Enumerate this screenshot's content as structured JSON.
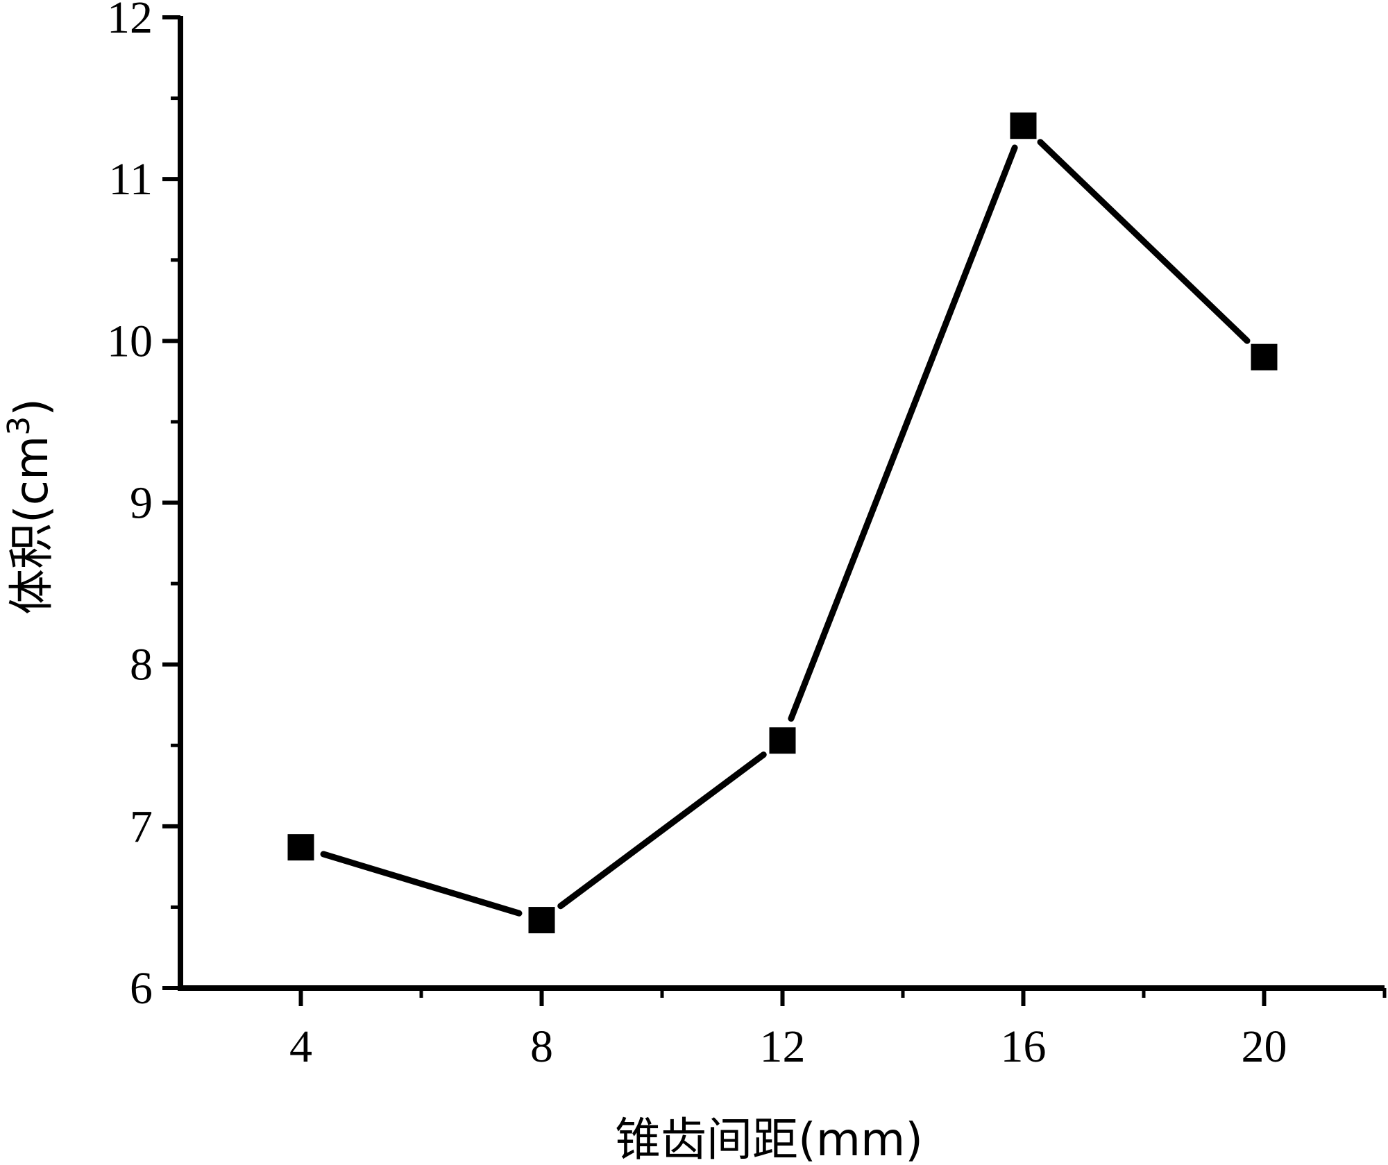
{
  "chart_data": {
    "type": "line",
    "x": [
      4,
      8,
      12,
      16,
      20
    ],
    "series": [
      {
        "values": [
          6.87,
          6.42,
          7.53,
          11.33,
          9.9
        ],
        "color": "#000000",
        "marker": "square"
      }
    ],
    "xlabel": "锥齿间距(mm)",
    "ylabel": "体积(cm",
    "ylabel_superscript": "3",
    "ylabel_suffix": ")",
    "xlim": [
      2,
      22
    ],
    "ylim": [
      6,
      12
    ],
    "x_ticks": [
      4,
      8,
      12,
      16,
      20
    ],
    "x_tick_labels": [
      "4",
      "8",
      "12",
      "16",
      "20"
    ],
    "y_ticks": [
      6,
      7,
      8,
      9,
      10,
      11,
      12
    ],
    "y_tick_labels": [
      "6",
      "7",
      "8",
      "9",
      "10",
      "11",
      "12"
    ],
    "x_minor_ticks": [
      6,
      10,
      14,
      18,
      22
    ],
    "y_minor_ticks": [
      6.5,
      7.5,
      8.5,
      9.5,
      10.5,
      11.5
    ],
    "grid": false,
    "legend": "none"
  }
}
